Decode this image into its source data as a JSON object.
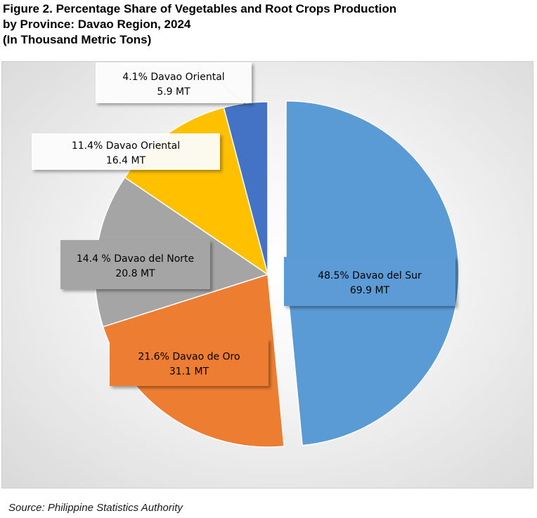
{
  "title": {
    "line1": "Figure 2. Percentage Share of Vegetables and Root Crops Production",
    "line2": "by Province: Davao Region, 2024",
    "line3": "(In Thousand Metric Tons)"
  },
  "source": "Source: Philippine Statistics Authority",
  "colors": {
    "background_gradient": [
      "#ffffff",
      "#d9d9d9"
    ],
    "label_box": "#ffffff"
  },
  "chart_data": {
    "type": "pie",
    "start": "12 o'clock, clockwise",
    "exploded_slice": "Davao del Sur",
    "slices": [
      {
        "name": "Davao del Sur",
        "percent": 48.5,
        "value": 69.9,
        "color": "#5B9BD5",
        "label_pct": "48.5% Davao del Sur",
        "label_val": "69.9 MT"
      },
      {
        "name": "Davao de Oro",
        "percent": 21.6,
        "value": 31.1,
        "color": "#ED7D31",
        "label_pct": "21.6% Davao de Oro",
        "label_val": "31.1 MT"
      },
      {
        "name": "Davao del Norte",
        "percent": 14.4,
        "value": 20.8,
        "color": "#A5A5A5",
        "label_pct": "14.4 % Davao del Norte",
        "label_val": "20.8 MT"
      },
      {
        "name": "Davao Oriental",
        "percent": 11.4,
        "value": 16.4,
        "color": "#FFC000",
        "label_pct": "11.4% Davao Oriental",
        "label_val": "16.4 MT"
      },
      {
        "name": "Davao Oriental",
        "percent": 4.1,
        "value": 5.9,
        "color": "#4472C4",
        "label_pct": "4.1% Davao Oriental",
        "label_val": "5.9 MT"
      }
    ]
  }
}
